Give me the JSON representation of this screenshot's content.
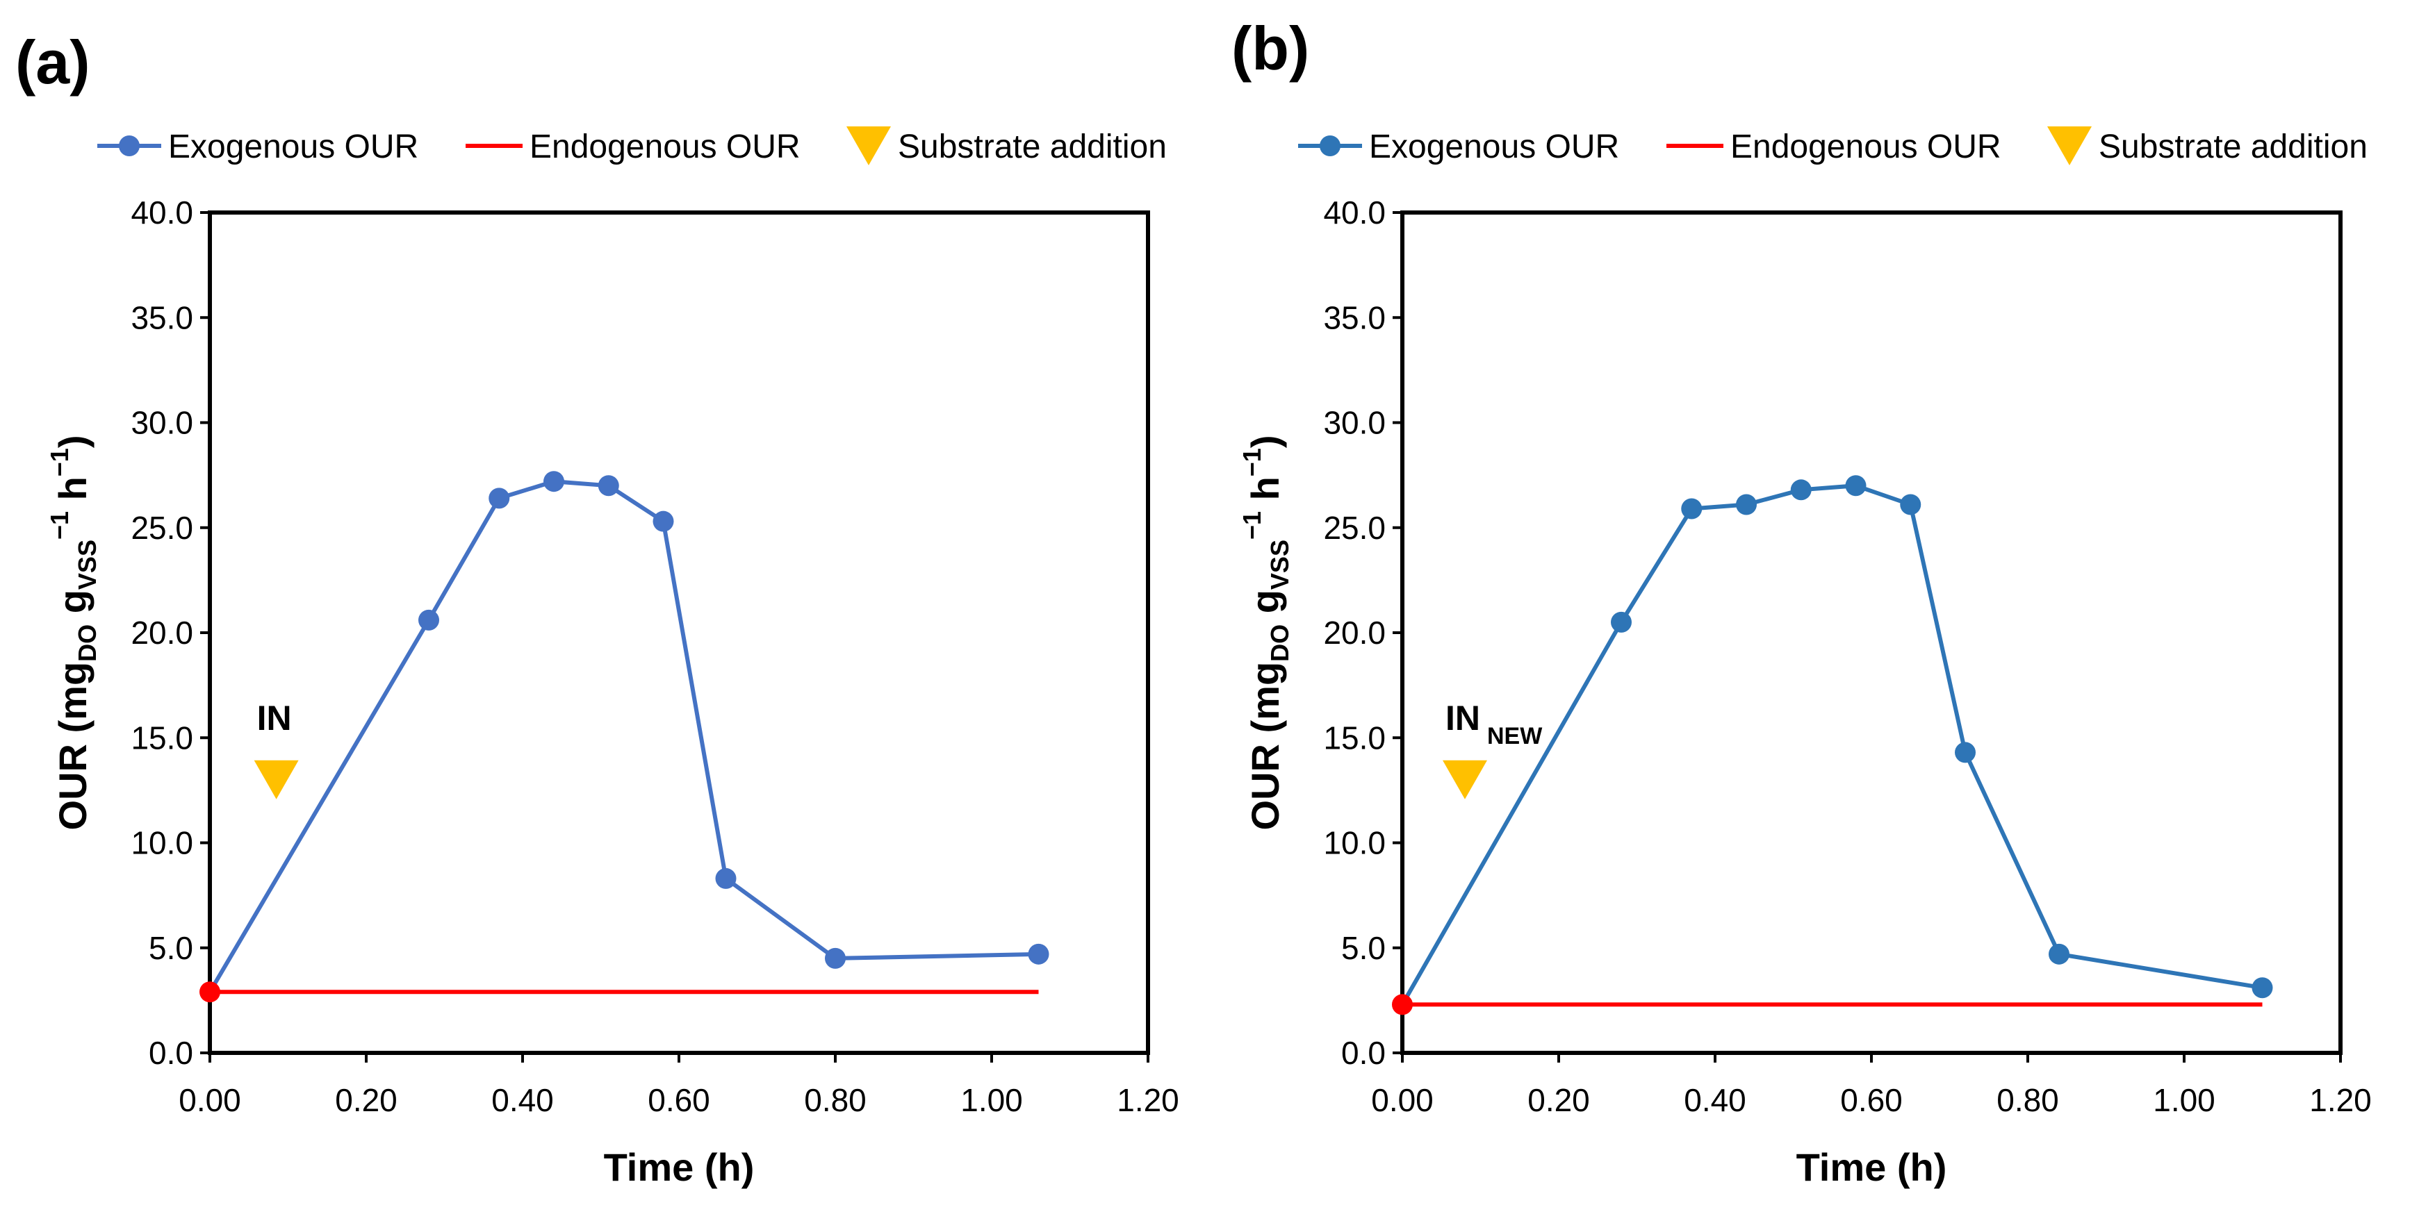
{
  "colors": {
    "exogenous_a": "#4472C4",
    "exogenous_b": "#2E75B6",
    "endogenous": "#FF0000",
    "substrate": "#FFC000",
    "axis": "#000000"
  },
  "legend": {
    "exogenous": "Exogenous OUR",
    "endogenous": "Endogenous OUR",
    "substrate": "Substrate addition"
  },
  "y_axis_title": {
    "main": "OUR (mg",
    "sub1": "DO",
    "g": " g",
    "sub2": "VSS",
    "sup1": "−1",
    "h": " h",
    "sup2": "−1",
    "close": ")"
  },
  "chart_data": [
    {
      "panel_label": "(a)",
      "type": "line",
      "xlabel": "Time (h)",
      "ylabel": "OUR (mgDO gVSS−1 h−1)",
      "xlim": [
        0,
        1.2
      ],
      "ylim": [
        0,
        40
      ],
      "x_ticks": [
        "0.00",
        "0.20",
        "0.40",
        "0.60",
        "0.80",
        "1.00",
        "1.20"
      ],
      "y_ticks": [
        "0.0",
        "5.0",
        "10.0",
        "15.0",
        "20.0",
        "25.0",
        "30.0",
        "35.0",
        "40.0"
      ],
      "series": [
        {
          "name": "Exogenous OUR",
          "x": [
            0.0,
            0.28,
            0.37,
            0.44,
            0.51,
            0.58,
            0.66,
            0.8,
            1.06
          ],
          "y": [
            2.9,
            20.6,
            26.4,
            27.2,
            27.0,
            25.3,
            8.3,
            4.5,
            4.7
          ]
        },
        {
          "name": "Endogenous OUR",
          "x": [
            0.0,
            1.06
          ],
          "y": [
            2.9,
            2.9
          ]
        }
      ],
      "substrate_addition": {
        "x": 0.085,
        "y": 13.0,
        "label": "IN",
        "label_sub": ""
      }
    },
    {
      "panel_label": "(b)",
      "type": "line",
      "xlabel": "Time (h)",
      "ylabel": "OUR (mgDO gVSS−1 h−1)",
      "xlim": [
        0,
        1.2
      ],
      "ylim": [
        0,
        40
      ],
      "x_ticks": [
        "0.00",
        "0.20",
        "0.40",
        "0.60",
        "0.80",
        "1.00",
        "1.20"
      ],
      "y_ticks": [
        "0.0",
        "5.0",
        "10.0",
        "15.0",
        "20.0",
        "25.0",
        "30.0",
        "35.0",
        "40.0"
      ],
      "series": [
        {
          "name": "Exogenous OUR",
          "x": [
            0.0,
            0.28,
            0.37,
            0.44,
            0.51,
            0.58,
            0.65,
            0.72,
            0.84,
            1.1
          ],
          "y": [
            2.3,
            20.5,
            25.9,
            26.1,
            26.8,
            27.0,
            26.1,
            14.3,
            4.7,
            3.1
          ]
        },
        {
          "name": "Endogenous OUR",
          "x": [
            0.0,
            1.1
          ],
          "y": [
            2.3,
            2.3
          ]
        }
      ],
      "substrate_addition": {
        "x": 0.08,
        "y": 13.0,
        "label": "IN",
        "label_sub": "NEW"
      }
    }
  ]
}
